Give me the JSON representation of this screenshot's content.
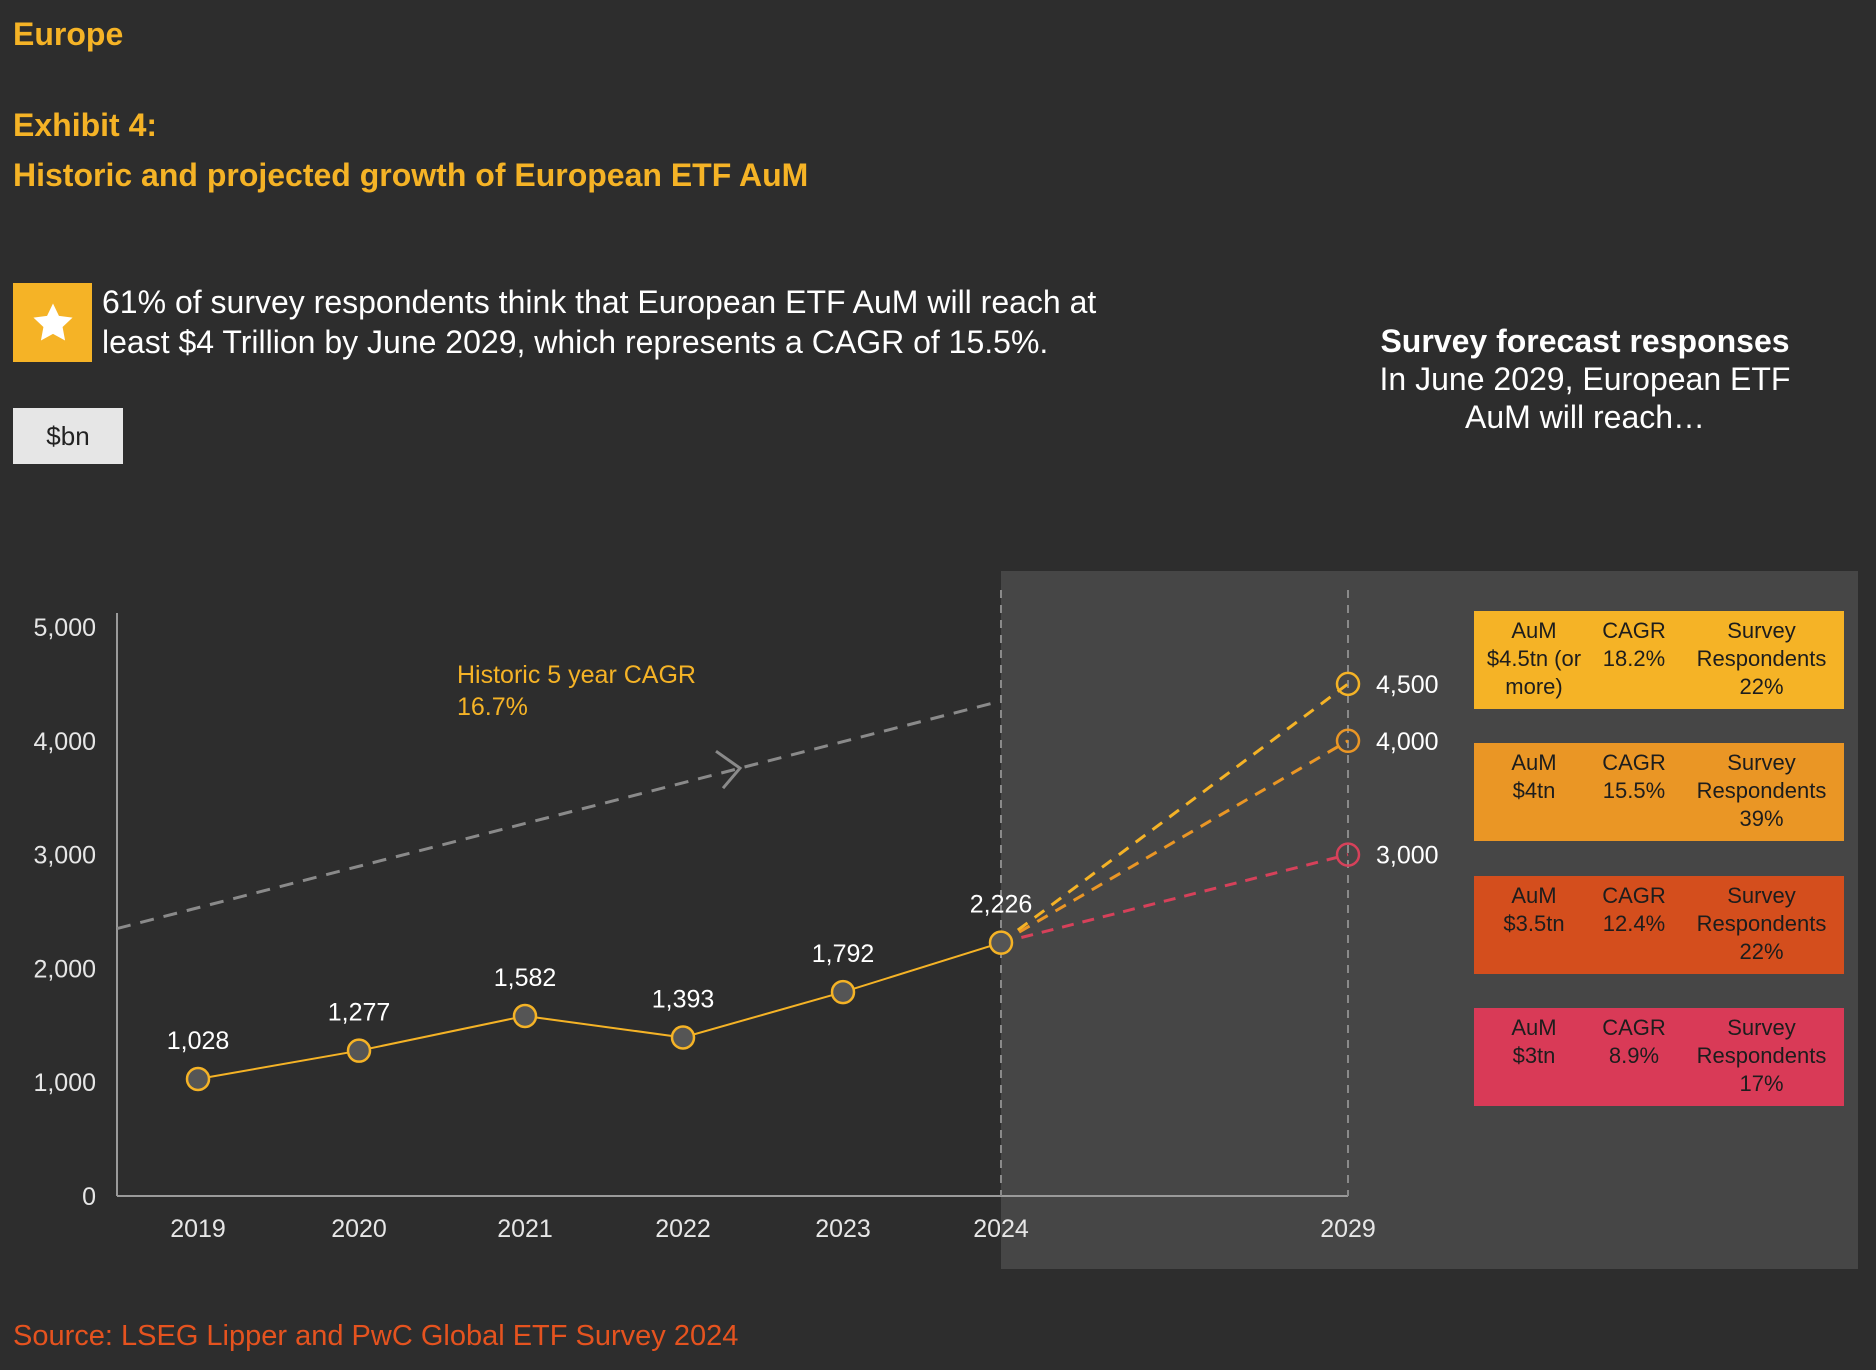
{
  "header": {
    "section": "Europe",
    "exhibit_label": "Exhibit 4:",
    "exhibit_title": "Historic and projected growth of European ETF AuM"
  },
  "callout": {
    "icon": "star-icon",
    "text_line1": "61% of survey respondents think that European ETF AuM will reach at",
    "text_line2": "least $4 Trillion by June 2029, which represents a CAGR of 15.5%."
  },
  "unit_label": "$bn",
  "forecast_panel": {
    "title": "Survey forecast responses",
    "subtitle_line1": "In June 2029, European ETF",
    "subtitle_line2": "AuM will reach…"
  },
  "chart_data": {
    "type": "line",
    "ylim": [
      0,
      5000
    ],
    "yticks": [
      {
        "value": 0,
        "label": "0"
      },
      {
        "value": 1000,
        "label": "1,000"
      },
      {
        "value": 2000,
        "label": "2,000"
      },
      {
        "value": 3000,
        "label": "3,000"
      },
      {
        "value": 4000,
        "label": "4,000"
      },
      {
        "value": 5000,
        "label": "5,000"
      }
    ],
    "historic": {
      "categories": [
        "2019",
        "2020",
        "2021",
        "2022",
        "2023",
        "2024"
      ],
      "values": [
        1028,
        1277,
        1582,
        1393,
        1792,
        2226
      ],
      "labels": [
        "1,028",
        "1,277",
        "1,582",
        "1,393",
        "1,792",
        "2,226"
      ],
      "color": "#f5b326"
    },
    "trend": {
      "label_line1": "Historic 5 year CAGR",
      "label_line2": "16.7%",
      "start_value": 2350,
      "end_value": 4350,
      "color": "#8a8a8a"
    },
    "forecast_year": "2029",
    "projections": [
      {
        "value": 4500,
        "label": "4,500",
        "color": "#f5b326"
      },
      {
        "value": 4000,
        "label": "4,000",
        "color": "#ea9625"
      },
      {
        "value": 3000,
        "label": "3,000",
        "color": "#d6415a"
      }
    ]
  },
  "scenarios": [
    {
      "aum_label": "AuM",
      "aum_value": "$4.5tn (or more)",
      "cagr_label": "CAGR",
      "cagr_value": "18.2%",
      "resp_label": "Survey Respondents",
      "resp_value": "22%",
      "color": "#f5b326"
    },
    {
      "aum_label": "AuM",
      "aum_value": "$4tn",
      "cagr_label": "CAGR",
      "cagr_value": "15.5%",
      "resp_label": "Survey Respondents",
      "resp_value": "39%",
      "color": "#ea9625"
    },
    {
      "aum_label": "AuM",
      "aum_value": "$3.5tn",
      "cagr_label": "CAGR",
      "cagr_value": "12.4%",
      "resp_label": "Survey Respondents",
      "resp_value": "22%",
      "color": "#d44e1d"
    },
    {
      "aum_label": "AuM",
      "aum_value": "$3tn",
      "cagr_label": "CAGR",
      "cagr_value": "8.9%",
      "resp_label": "Survey Respondents",
      "resp_value": "17%",
      "color": "#d93a57"
    }
  ],
  "source": "Source: LSEG Lipper and PwC Global ETF Survey 2024"
}
